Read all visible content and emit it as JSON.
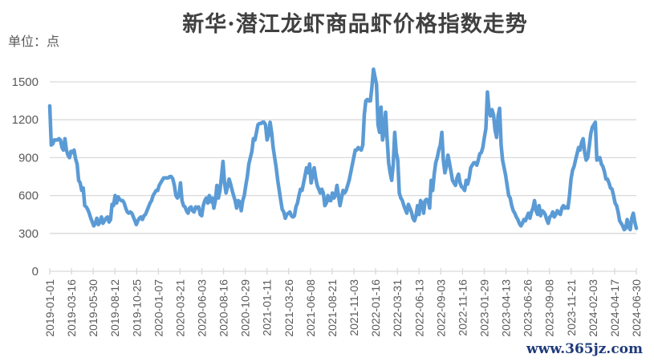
{
  "title": "新华·潜江龙虾商品虾价格指数走势",
  "unit_label": "单位：点",
  "watermark": "www.365jz.com",
  "colors": {
    "line": "#5b9bd5",
    "grid": "#d9d9d9",
    "text": "#595959",
    "title": "#404040"
  },
  "chart_data": {
    "type": "line",
    "title": "新华·潜江龙虾商品虾价格指数走势",
    "ylabel": "单位：点",
    "xlabel": "",
    "ylim": [
      0,
      1500
    ],
    "yticks": [
      0,
      300,
      600,
      900,
      1200,
      1500
    ],
    "grid": true,
    "legend": "none",
    "x_tick_labels": [
      "2019-01-01",
      "2019-03-16",
      "2019-05-30",
      "2019-08-12",
      "2019-10-25",
      "2020-01-07",
      "2020-03-21",
      "2020-06-03",
      "2020-08-16",
      "2020-10-29",
      "2021-01-11",
      "2021-03-26",
      "2021-06-08",
      "2021-08-21",
      "2021-11-03",
      "2022-01-16",
      "2022-03-31",
      "2022-06-13",
      "2022-09-03",
      "2022-11-16",
      "2023-01-29",
      "2023-04-13",
      "2023-06-26",
      "2023-09-08",
      "2023-11-21",
      "2024-02-03",
      "2024-04-17",
      "2024-06-30"
    ],
    "series": [
      {
        "name": "新华·潜江龙虾商品虾价格指数",
        "x_range": [
          "2019-01-01",
          "2024-06-30"
        ],
        "values": [
          1310,
          1000,
          1010,
          1040,
          1040,
          1040,
          1050,
          1040,
          980,
          960,
          1050,
          960,
          920,
          900,
          950,
          940,
          960,
          890,
          850,
          720,
          700,
          640,
          660,
          520,
          510,
          490,
          460,
          420,
          390,
          360,
          380,
          420,
          370,
          390,
          430,
          380,
          400,
          420,
          430,
          390,
          410,
          530,
          520,
          600,
          540,
          590,
          570,
          560,
          560,
          540,
          500,
          470,
          460,
          470,
          460,
          430,
          400,
          370,
          400,
          420,
          430,
          410,
          440,
          450,
          480,
          510,
          540,
          560,
          600,
          620,
          640,
          640,
          680,
          700,
          720,
          740,
          740,
          740,
          740,
          750,
          750,
          730,
          680,
          600,
          580,
          600,
          700,
          560,
          520,
          510,
          480,
          460,
          500,
          510,
          480,
          470,
          510,
          500,
          510,
          450,
          440,
          520,
          560,
          580,
          540,
          600,
          550,
          580,
          500,
          560,
          680,
          580,
          640,
          750,
          870,
          700,
          620,
          670,
          730,
          690,
          640,
          600,
          560,
          500,
          560,
          550,
          480,
          560,
          600,
          680,
          750,
          850,
          900,
          950,
          1050,
          1040,
          1100,
          1160,
          1170,
          1170,
          1180,
          1180,
          1160,
          1040,
          1080,
          1180,
          1100,
          980,
          900,
          820,
          720,
          640,
          560,
          490,
          470,
          420,
          450,
          460,
          470,
          440,
          430,
          440,
          510,
          540,
          600,
          650,
          640,
          700,
          760,
          820,
          780,
          850,
          700,
          760,
          820,
          740,
          680,
          650,
          620,
          650,
          620,
          520,
          540,
          600,
          560,
          560,
          620,
          580,
          600,
          680,
          600,
          520,
          580,
          640,
          620,
          640,
          680,
          720,
          780,
          840,
          900,
          960,
          960,
          980,
          970,
          960,
          1000,
          1240,
          1350,
          1360,
          1350,
          1350,
          1460,
          1600,
          1540,
          1480,
          1160,
          1100,
          1300,
          1040,
          1100,
          1260,
          1050,
          860,
          780,
          720,
          840,
          1100,
          940,
          880,
          620,
          580,
          560,
          520,
          490,
          460,
          530,
          500,
          470,
          420,
          400,
          440,
          520,
          450,
          560,
          540,
          460,
          560,
          570,
          560,
          500,
          720,
          640,
          770,
          860,
          900,
          960,
          1000,
          1100,
          880,
          780,
          830,
          920,
          860,
          790,
          720,
          700,
          680,
          740,
          770,
          700,
          670,
          660,
          640,
          720,
          690,
          740,
          820,
          840,
          860,
          860,
          840,
          880,
          930,
          940,
          980,
          1060,
          1130,
          1420,
          1280,
          1230,
          1280,
          1240,
          1120,
          1060,
          1230,
          1290,
          1000,
          880,
          820,
          760,
          680,
          600,
          580,
          520,
          480,
          460,
          430,
          410,
          380,
          360,
          380,
          410,
          400,
          430,
          460,
          420,
          470,
          500,
          560,
          480,
          450,
          520,
          440,
          480,
          470,
          450,
          410,
          380,
          430,
          440,
          470,
          430,
          450,
          480,
          460,
          450,
          500,
          520,
          500,
          510,
          500,
          600,
          730,
          800,
          830,
          880,
          930,
          980,
          960,
          1020,
          1050,
          940,
          880,
          900,
          990,
          1090,
          1140,
          1160,
          1180,
          880,
          890,
          900,
          850,
          830,
          790,
          730,
          730,
          700,
          660,
          650,
          600,
          540,
          520,
          470,
          400,
          380,
          360,
          330,
          340,
          410,
          350,
          330,
          420,
          460,
          390,
          340
        ]
      }
    ]
  }
}
